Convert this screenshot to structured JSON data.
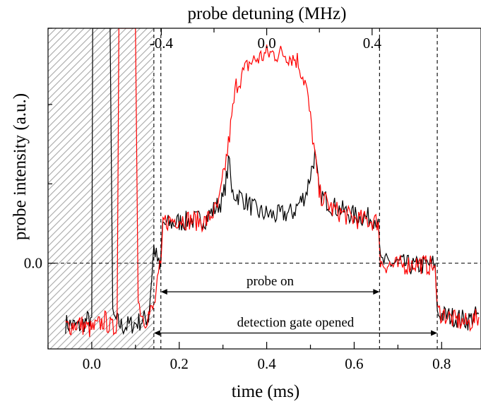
{
  "chart_data": {
    "type": "line",
    "title": "",
    "xlabel": "time (ms)",
    "ylabel": "probe intensity (a.u.)",
    "x2label": "probe detuning (MHz)",
    "xlim": [
      -0.1,
      0.89
    ],
    "ylim": [
      -0.27,
      0.74
    ],
    "x_ticks": [
      0.0,
      0.2,
      0.4,
      0.6,
      0.8
    ],
    "x_tick_labels": [
      "0.0",
      "0.2",
      "0.4",
      "0.6",
      "0.8"
    ],
    "x_minor_ticks": [
      -0.1,
      0.1,
      0.3,
      0.5,
      0.7
    ],
    "y_ticks": [
      0.0
    ],
    "y_tick_labels": [
      "0.0"
    ],
    "y_minor_ticks": [
      0.25,
      0.5,
      0.74
    ],
    "x2_ticks_time": [
      0.159,
      0.4,
      0.641
    ],
    "x2_tick_labels": [
      "-0.4",
      "0.0",
      "0.4"
    ],
    "x2_minor_ticks_time": [
      0.2795,
      0.5205
    ],
    "grid": false,
    "legend": "none",
    "shaded_region": {
      "x": [
        -0.1,
        0.142
      ],
      "pattern": "diagonal hatch"
    },
    "vertical_markers": [
      0.142,
      0.158,
      0.658,
      0.79
    ],
    "horizontal_marker": 0.0,
    "annotations": [
      {
        "text": "probe on",
        "from": 0.158,
        "to": 0.658,
        "y": -0.09
      },
      {
        "text": "detection gate opened",
        "from": 0.142,
        "to": 0.79,
        "y": -0.22
      }
    ],
    "series": [
      {
        "color": "#000000",
        "points": [
          [
            -0.06,
            -0.19
          ],
          [
            -0.03,
            -0.2
          ],
          [
            -0.01,
            -0.18
          ],
          [
            0.0,
            -0.17
          ],
          [
            0.002,
            0.74
          ],
          [
            0.042,
            0.74
          ],
          [
            0.048,
            -0.17
          ],
          [
            0.07,
            -0.2
          ],
          [
            0.1,
            -0.19
          ],
          [
            0.13,
            -0.17
          ],
          [
            0.142,
            0.05
          ],
          [
            0.156,
            -0.02
          ],
          [
            0.162,
            0.12
          ],
          [
            0.2,
            0.13
          ],
          [
            0.26,
            0.14
          ],
          [
            0.3,
            0.2
          ],
          [
            0.315,
            0.33
          ],
          [
            0.32,
            0.22
          ],
          [
            0.34,
            0.21
          ],
          [
            0.38,
            0.16
          ],
          [
            0.42,
            0.15
          ],
          [
            0.46,
            0.16
          ],
          [
            0.49,
            0.22
          ],
          [
            0.51,
            0.34
          ],
          [
            0.52,
            0.22
          ],
          [
            0.55,
            0.18
          ],
          [
            0.6,
            0.15
          ],
          [
            0.655,
            0.14
          ],
          [
            0.66,
            0.0
          ],
          [
            0.7,
            0.0
          ],
          [
            0.74,
            -0.01
          ],
          [
            0.785,
            0.0
          ],
          [
            0.79,
            -0.16
          ],
          [
            0.83,
            -0.17
          ],
          [
            0.86,
            -0.18
          ],
          [
            0.885,
            -0.16
          ]
        ]
      },
      {
        "color": "#ff0000",
        "points": [
          [
            -0.06,
            -0.2
          ],
          [
            -0.03,
            -0.19
          ],
          [
            0.0,
            -0.21
          ],
          [
            0.03,
            -0.18
          ],
          [
            0.05,
            -0.21
          ],
          [
            0.058,
            -0.18
          ],
          [
            0.062,
            0.74
          ],
          [
            0.1,
            0.74
          ],
          [
            0.106,
            -0.12
          ],
          [
            0.12,
            -0.18
          ],
          [
            0.142,
            -0.14
          ],
          [
            0.158,
            0.0
          ],
          [
            0.163,
            0.13
          ],
          [
            0.2,
            0.14
          ],
          [
            0.26,
            0.13
          ],
          [
            0.29,
            0.18
          ],
          [
            0.31,
            0.35
          ],
          [
            0.33,
            0.56
          ],
          [
            0.36,
            0.63
          ],
          [
            0.4,
            0.66
          ],
          [
            0.44,
            0.66
          ],
          [
            0.47,
            0.64
          ],
          [
            0.49,
            0.56
          ],
          [
            0.505,
            0.4
          ],
          [
            0.52,
            0.22
          ],
          [
            0.55,
            0.17
          ],
          [
            0.6,
            0.14
          ],
          [
            0.655,
            0.13
          ],
          [
            0.66,
            0.0
          ],
          [
            0.7,
            -0.01
          ],
          [
            0.74,
            0.0
          ],
          [
            0.785,
            -0.01
          ],
          [
            0.79,
            -0.15
          ],
          [
            0.83,
            -0.18
          ],
          [
            0.86,
            -0.19
          ],
          [
            0.885,
            -0.17
          ]
        ]
      }
    ]
  }
}
